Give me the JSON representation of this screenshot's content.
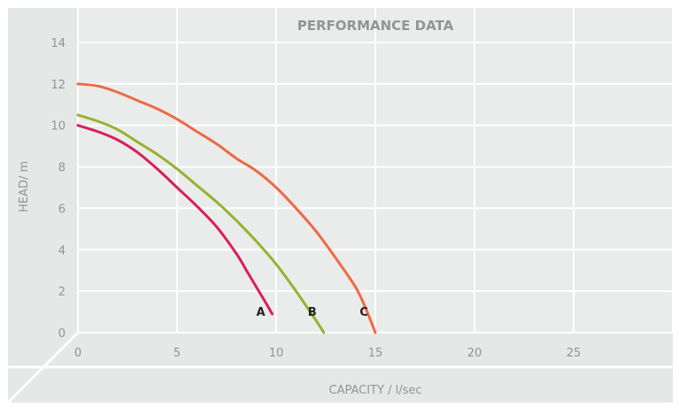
{
  "chart_data": {
    "type": "line",
    "title": "PERFORMANCE DATA",
    "xlabel": "CAPACITY / l/sec",
    "ylabel": "HEAD/ m",
    "xlim": [
      0,
      30
    ],
    "ylim": [
      0,
      14
    ],
    "xticks": [
      0,
      5,
      10,
      15,
      20,
      25
    ],
    "yticks": [
      0,
      2,
      4,
      6,
      8,
      10,
      12,
      14
    ],
    "grid": true,
    "legend": "none",
    "series": [
      {
        "name": "A",
        "color": "#d81e5b",
        "x": [
          0,
          1,
          2,
          3,
          4,
          5,
          6,
          7,
          8,
          8.5,
          9,
          9.5,
          9.8
        ],
        "y": [
          10,
          9.7,
          9.3,
          8.7,
          7.9,
          7.0,
          6.1,
          5.1,
          3.8,
          3.0,
          2.2,
          1.4,
          0.9
        ]
      },
      {
        "name": "B",
        "color": "#9bb02f",
        "x": [
          0,
          1,
          2,
          3,
          4,
          5,
          6,
          7,
          8,
          9,
          10,
          11,
          11.5,
          12,
          12.4
        ],
        "y": [
          10.5,
          10.2,
          9.8,
          9.2,
          8.6,
          7.9,
          7.1,
          6.3,
          5.4,
          4.4,
          3.3,
          2.0,
          1.3,
          0.6,
          0
        ]
      },
      {
        "name": "C",
        "color": "#ee6a44",
        "x": [
          0,
          1,
          2,
          3,
          4,
          5,
          6,
          7,
          8,
          9,
          10,
          11,
          12,
          13,
          14,
          14.5,
          15
        ],
        "y": [
          12,
          11.9,
          11.6,
          11.2,
          10.8,
          10.3,
          9.7,
          9.1,
          8.4,
          7.8,
          7.0,
          6.0,
          4.9,
          3.6,
          2.2,
          1.2,
          0
        ]
      }
    ]
  }
}
